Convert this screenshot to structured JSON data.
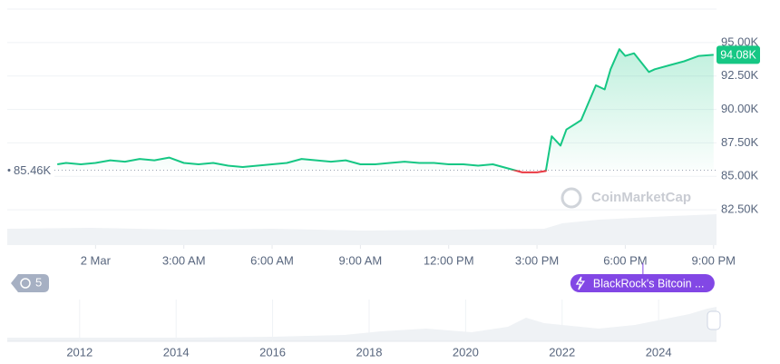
{
  "chart_data": {
    "type": "line",
    "x": [
      -1.3,
      -1,
      -0.5,
      0,
      0.5,
      1,
      1.5,
      2,
      2.5,
      3,
      3.5,
      4,
      4.5,
      5,
      5.5,
      6,
      6.5,
      7,
      7.5,
      8,
      8.5,
      9,
      9.5,
      10,
      10.5,
      11,
      11.5,
      12,
      12.5,
      13,
      13.5,
      14,
      14.5,
      15,
      15.3,
      15.5,
      15.8,
      16,
      16.5,
      17,
      17.3,
      17.5,
      17.8,
      18,
      18.3,
      18.8,
      19,
      19.5,
      20,
      20.5,
      21
    ],
    "series": [
      {
        "color": "#16c784",
        "down_color": "#ea3943",
        "values": [
          85900,
          86000,
          85900,
          86000,
          86200,
          86100,
          86300,
          86200,
          86400,
          86000,
          85900,
          86000,
          85800,
          85700,
          85800,
          85900,
          86000,
          86300,
          86200,
          86100,
          86200,
          85900,
          85900,
          86000,
          86100,
          86000,
          86000,
          85900,
          85900,
          85800,
          85900,
          85600,
          85300,
          85300,
          85400,
          88000,
          87300,
          88500,
          89200,
          91800,
          91500,
          93000,
          94500,
          94000,
          94200,
          92800,
          93000,
          93300,
          93600,
          94000,
          94080
        ]
      }
    ],
    "xlim": [
      -3,
      21.1
    ],
    "xticks": [
      {
        "value": 0,
        "label": "2 Mar"
      },
      {
        "value": 3,
        "label": "3:00 AM"
      },
      {
        "value": 6,
        "label": "6:00 AM"
      },
      {
        "value": 9,
        "label": "9:00 AM"
      },
      {
        "value": 12,
        "label": "12:00 PM"
      },
      {
        "value": 15,
        "label": "3:00 PM"
      },
      {
        "value": 18,
        "label": "6:00 PM"
      },
      {
        "value": 21,
        "label": "9:00 PM"
      }
    ],
    "ylim": [
      80000,
      97500
    ],
    "yticks": [
      {
        "value": 82500,
        "label": "82.50K"
      },
      {
        "value": 85000,
        "label": "85.00K"
      },
      {
        "value": 87500,
        "label": "87.50K"
      },
      {
        "value": 90000,
        "label": "90.00K"
      },
      {
        "value": 92500,
        "label": "92.50K"
      },
      {
        "value": 95000,
        "label": "95.00K"
      }
    ],
    "grid": true,
    "baseline": {
      "value": 85460,
      "label": "85.46K"
    },
    "last_price": {
      "value": 94080,
      "label": "94.08K"
    },
    "event": {
      "x": 18.6,
      "label": "BlackRock's Bitcoin ..."
    },
    "watermark": "CoinMarketCap"
  },
  "history_count": 5,
  "navigator": {
    "xlim": [
      2010.5,
      2025.2
    ],
    "xticks": [
      2012,
      2014,
      2016,
      2018,
      2020,
      2022,
      2024
    ]
  }
}
